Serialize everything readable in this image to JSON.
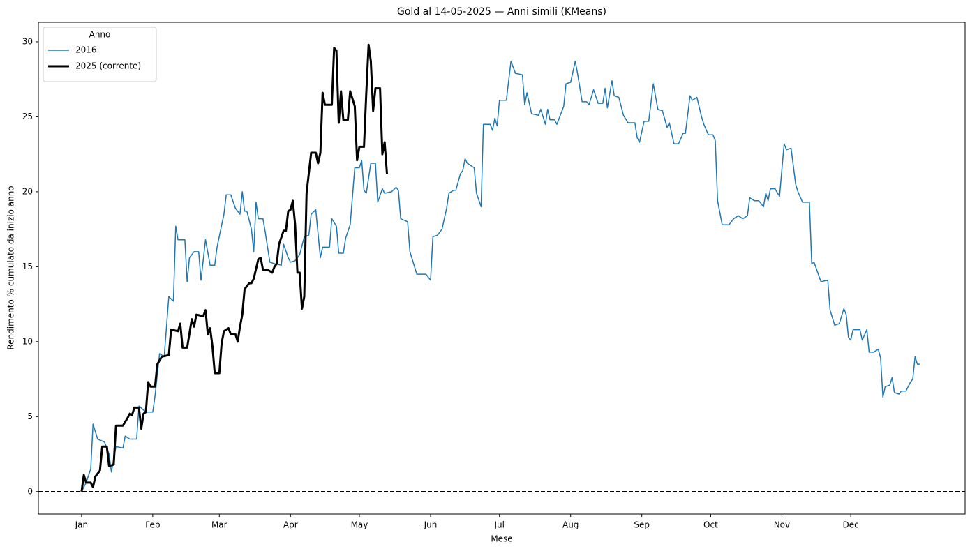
{
  "chart_data": {
    "type": "line",
    "title": "Gold al 14-05-2025 — Anni simili (KMeans)",
    "xlabel": "Mese",
    "ylabel": "Rendimento % cumulato da inizio anno",
    "xlim": [
      -17.8,
      385.8
    ],
    "ylim": [
      -1.5,
      31.3
    ],
    "xticks": [
      {
        "value": 1,
        "label": "Jan"
      },
      {
        "value": 32,
        "label": "Feb"
      },
      {
        "value": 61,
        "label": "Mar"
      },
      {
        "value": 92,
        "label": "Apr"
      },
      {
        "value": 122,
        "label": "May"
      },
      {
        "value": 153,
        "label": "Jun"
      },
      {
        "value": 183,
        "label": "Jul"
      },
      {
        "value": 214,
        "label": "Aug"
      },
      {
        "value": 245,
        "label": "Sep"
      },
      {
        "value": 275,
        "label": "Oct"
      },
      {
        "value": 306,
        "label": "Nov"
      },
      {
        "value": 336,
        "label": "Dec"
      }
    ],
    "yticks": [
      0,
      5,
      10,
      15,
      20,
      25,
      30
    ],
    "grid": false,
    "legend": "upper left",
    "legend_title": "Anno",
    "hlines": [
      {
        "y": 0,
        "color": "#000000",
        "dashed": true
      }
    ],
    "series": [
      {
        "name": "2016",
        "color": "#1f77b4",
        "width": 1.5,
        "x": [
          1,
          3,
          5,
          6,
          8,
          11,
          13,
          14,
          16,
          19,
          20,
          22,
          25,
          26,
          29,
          32,
          33,
          35,
          37,
          39,
          41,
          42,
          43,
          46,
          47,
          48,
          50,
          52,
          53,
          55,
          57,
          59,
          60,
          63,
          64,
          66,
          68,
          70,
          71,
          72,
          73,
          75,
          76,
          77,
          78,
          80,
          81,
          83,
          85,
          88,
          89,
          91,
          92,
          94,
          96,
          98,
          100,
          101,
          103,
          105,
          106,
          109,
          110,
          112,
          113,
          115,
          116,
          118,
          120,
          122,
          123,
          124,
          125,
          127,
          129,
          130,
          132,
          133,
          136,
          138,
          139,
          140,
          143,
          144,
          146,
          147,
          151,
          153,
          154,
          156,
          158,
          160,
          161,
          163,
          164,
          166,
          167,
          168,
          169,
          172,
          173,
          175,
          176,
          179,
          180,
          181,
          182,
          183,
          186,
          188,
          190,
          193,
          194,
          195,
          197,
          200,
          201,
          203,
          204,
          205,
          207,
          208,
          211,
          212,
          214,
          216,
          217,
          219,
          221,
          222,
          224,
          226,
          228,
          229,
          230,
          232,
          233,
          235,
          237,
          239,
          240,
          242,
          243,
          244,
          246,
          248,
          250,
          252,
          254,
          256,
          257,
          259,
          261,
          263,
          264,
          266,
          267,
          269,
          271,
          272,
          274,
          276,
          277,
          278,
          280,
          283,
          285,
          287,
          289,
          291,
          292,
          294,
          296,
          298,
          299,
          300,
          301,
          303,
          305,
          307,
          308,
          310,
          312,
          313,
          315,
          318,
          319,
          320,
          323,
          326,
          327,
          329,
          331,
          333,
          334,
          335,
          336,
          337,
          340,
          341,
          343,
          344,
          346,
          348,
          349,
          350,
          351,
          353,
          354,
          355,
          357,
          358,
          360,
          362,
          363,
          364,
          365,
          366
        ],
        "values": [
          0,
          0.6,
          1.5,
          4.5,
          3.5,
          3.3,
          2.5,
          1.3,
          3.0,
          2.9,
          3.7,
          3.5,
          3.5,
          5.7,
          5.3,
          5.3,
          6.4,
          9.2,
          9.0,
          13.0,
          12.7,
          17.7,
          16.8,
          16.8,
          14.0,
          15.6,
          16.0,
          16.0,
          14.1,
          16.8,
          15.1,
          15.1,
          16.3,
          18.5,
          19.8,
          19.8,
          18.9,
          18.5,
          20.0,
          18.7,
          18.7,
          17.5,
          16.0,
          19.3,
          18.2,
          18.2,
          17.3,
          15.3,
          15.2,
          15.1,
          16.5,
          15.6,
          15.3,
          15.4,
          15.8,
          17.0,
          17.1,
          18.5,
          18.8,
          15.6,
          16.3,
          16.3,
          18.2,
          17.7,
          15.9,
          15.9,
          16.9,
          17.8,
          21.6,
          21.6,
          22.1,
          20.1,
          19.9,
          21.9,
          21.9,
          19.3,
          20.2,
          19.9,
          20.0,
          20.3,
          20.1,
          18.2,
          18.0,
          16.0,
          15.0,
          14.5,
          14.5,
          14.1,
          17.0,
          17.1,
          17.5,
          18.9,
          19.9,
          20.1,
          20.1,
          21.2,
          21.4,
          22.2,
          21.9,
          21.6,
          19.9,
          19.0,
          24.5,
          24.5,
          24.1,
          24.9,
          24.4,
          26.1,
          26.1,
          28.7,
          27.9,
          27.8,
          25.8,
          26.6,
          25.2,
          25.1,
          25.5,
          24.5,
          25.5,
          24.8,
          24.8,
          24.5,
          25.7,
          27.2,
          27.3,
          28.7,
          27.9,
          26.0,
          26.0,
          25.8,
          26.8,
          25.9,
          25.9,
          26.9,
          25.6,
          27.4,
          26.4,
          26.3,
          25.1,
          24.6,
          24.6,
          24.6,
          23.6,
          23.3,
          24.7,
          24.7,
          27.2,
          25.5,
          25.4,
          24.3,
          24.6,
          23.2,
          23.2,
          23.9,
          23.9,
          26.4,
          26.1,
          26.3,
          25.0,
          24.5,
          23.8,
          23.8,
          23.4,
          19.4,
          17.8,
          17.8,
          18.2,
          18.4,
          18.2,
          18.4,
          19.6,
          19.4,
          19.4,
          19.0,
          19.9,
          19.4,
          20.2,
          20.2,
          19.7,
          23.2,
          22.8,
          22.9,
          20.5,
          20.0,
          19.3,
          19.3,
          15.2,
          15.3,
          14.0,
          14.1,
          12.1,
          11.1,
          11.2,
          12.2,
          11.8,
          10.3,
          10.1,
          10.8,
          10.8,
          10.1,
          10.8,
          9.3,
          9.3,
          9.5,
          8.9,
          6.3,
          7.0,
          7.1,
          7.6,
          6.6,
          6.5,
          6.7,
          6.7,
          7.3,
          7.5,
          9.0,
          8.5,
          8.5
        ]
      },
      {
        "name": "2025 (corrente)",
        "color": "#000000",
        "width": 3,
        "x": [
          1,
          2,
          3,
          5,
          6,
          7,
          9,
          10,
          12,
          13,
          15,
          16,
          19,
          21,
          22,
          23,
          24,
          26,
          27,
          28,
          29,
          30,
          31,
          33,
          34,
          36,
          39,
          40,
          43,
          44,
          45,
          47,
          49,
          50,
          51,
          54,
          55,
          56,
          57,
          58,
          59,
          61,
          62,
          63,
          65,
          66,
          68,
          69,
          70,
          71,
          72,
          74,
          75,
          76,
          78,
          79,
          80,
          82,
          84,
          85,
          86,
          87,
          89,
          90,
          91,
          92,
          93,
          94,
          95,
          96,
          97,
          98,
          99,
          101,
          103,
          104,
          105,
          106,
          107,
          110,
          111,
          112,
          113,
          114,
          115,
          117,
          118,
          120,
          121,
          122,
          124,
          125,
          126,
          127,
          128,
          129,
          131,
          132,
          133,
          134
        ],
        "values": [
          0,
          1.1,
          0.6,
          0.6,
          0.3,
          1.0,
          1.4,
          3.0,
          3.0,
          1.7,
          1.8,
          4.4,
          4.4,
          4.9,
          5.2,
          5.1,
          5.6,
          5.6,
          4.2,
          5.2,
          5.3,
          7.3,
          7.0,
          7.0,
          8.5,
          9.0,
          9.1,
          10.8,
          10.7,
          11.2,
          9.6,
          9.6,
          11.5,
          11.0,
          11.8,
          11.7,
          12.1,
          10.5,
          10.9,
          9.7,
          7.9,
          7.9,
          9.9,
          10.7,
          10.9,
          10.5,
          10.5,
          10.0,
          11.0,
          11.8,
          13.5,
          13.9,
          13.9,
          14.2,
          15.5,
          15.6,
          14.8,
          14.8,
          14.6,
          15.0,
          15.2,
          16.5,
          17.4,
          17.4,
          18.7,
          18.8,
          19.4,
          17.8,
          14.6,
          14.6,
          12.2,
          13.0,
          19.9,
          22.6,
          22.6,
          21.9,
          22.6,
          26.6,
          25.8,
          25.8,
          29.6,
          29.4,
          24.6,
          26.7,
          24.8,
          24.8,
          26.7,
          25.7,
          22.1,
          23.0,
          23.0,
          26.6,
          29.8,
          28.7,
          25.4,
          26.9,
          26.9,
          22.5,
          23.3,
          21.2
        ]
      }
    ]
  }
}
